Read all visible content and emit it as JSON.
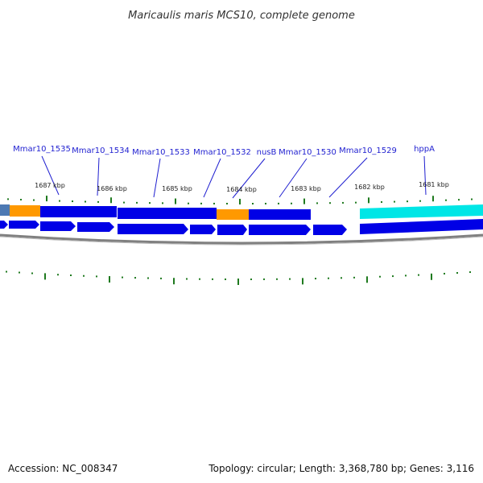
{
  "title": "Maricaulis maris MCS10, complete genome",
  "accession": "Accession: NC_008347",
  "summary": "Topology: circular; Length: 3,368,780 bp; Genes: 3,116",
  "gene_labels": [
    "Mmar10_1535",
    "Mmar10_1534",
    "Mmar10_1533",
    "Mmar10_1532",
    "nusB",
    "Mmar10_1530",
    "Mmar10_1529",
    "hppA"
  ],
  "kbp_labels": [
    "1687 kbp",
    "1686 kbp",
    "1685 kbp",
    "1684 kbp",
    "1683 kbp",
    "1682 kbp",
    "1681 kbp"
  ],
  "colors": {
    "gene_blue": "#0000e6",
    "cds_orange": "#ff9900",
    "rna_cyan": "#00e6e6",
    "tick_green": "#1f7a1f",
    "label_blue": "#1f1fd0",
    "backbone_gray": "#808080"
  },
  "icons": {
    "forward_arrow": "forward-strand-arrow-icon"
  }
}
